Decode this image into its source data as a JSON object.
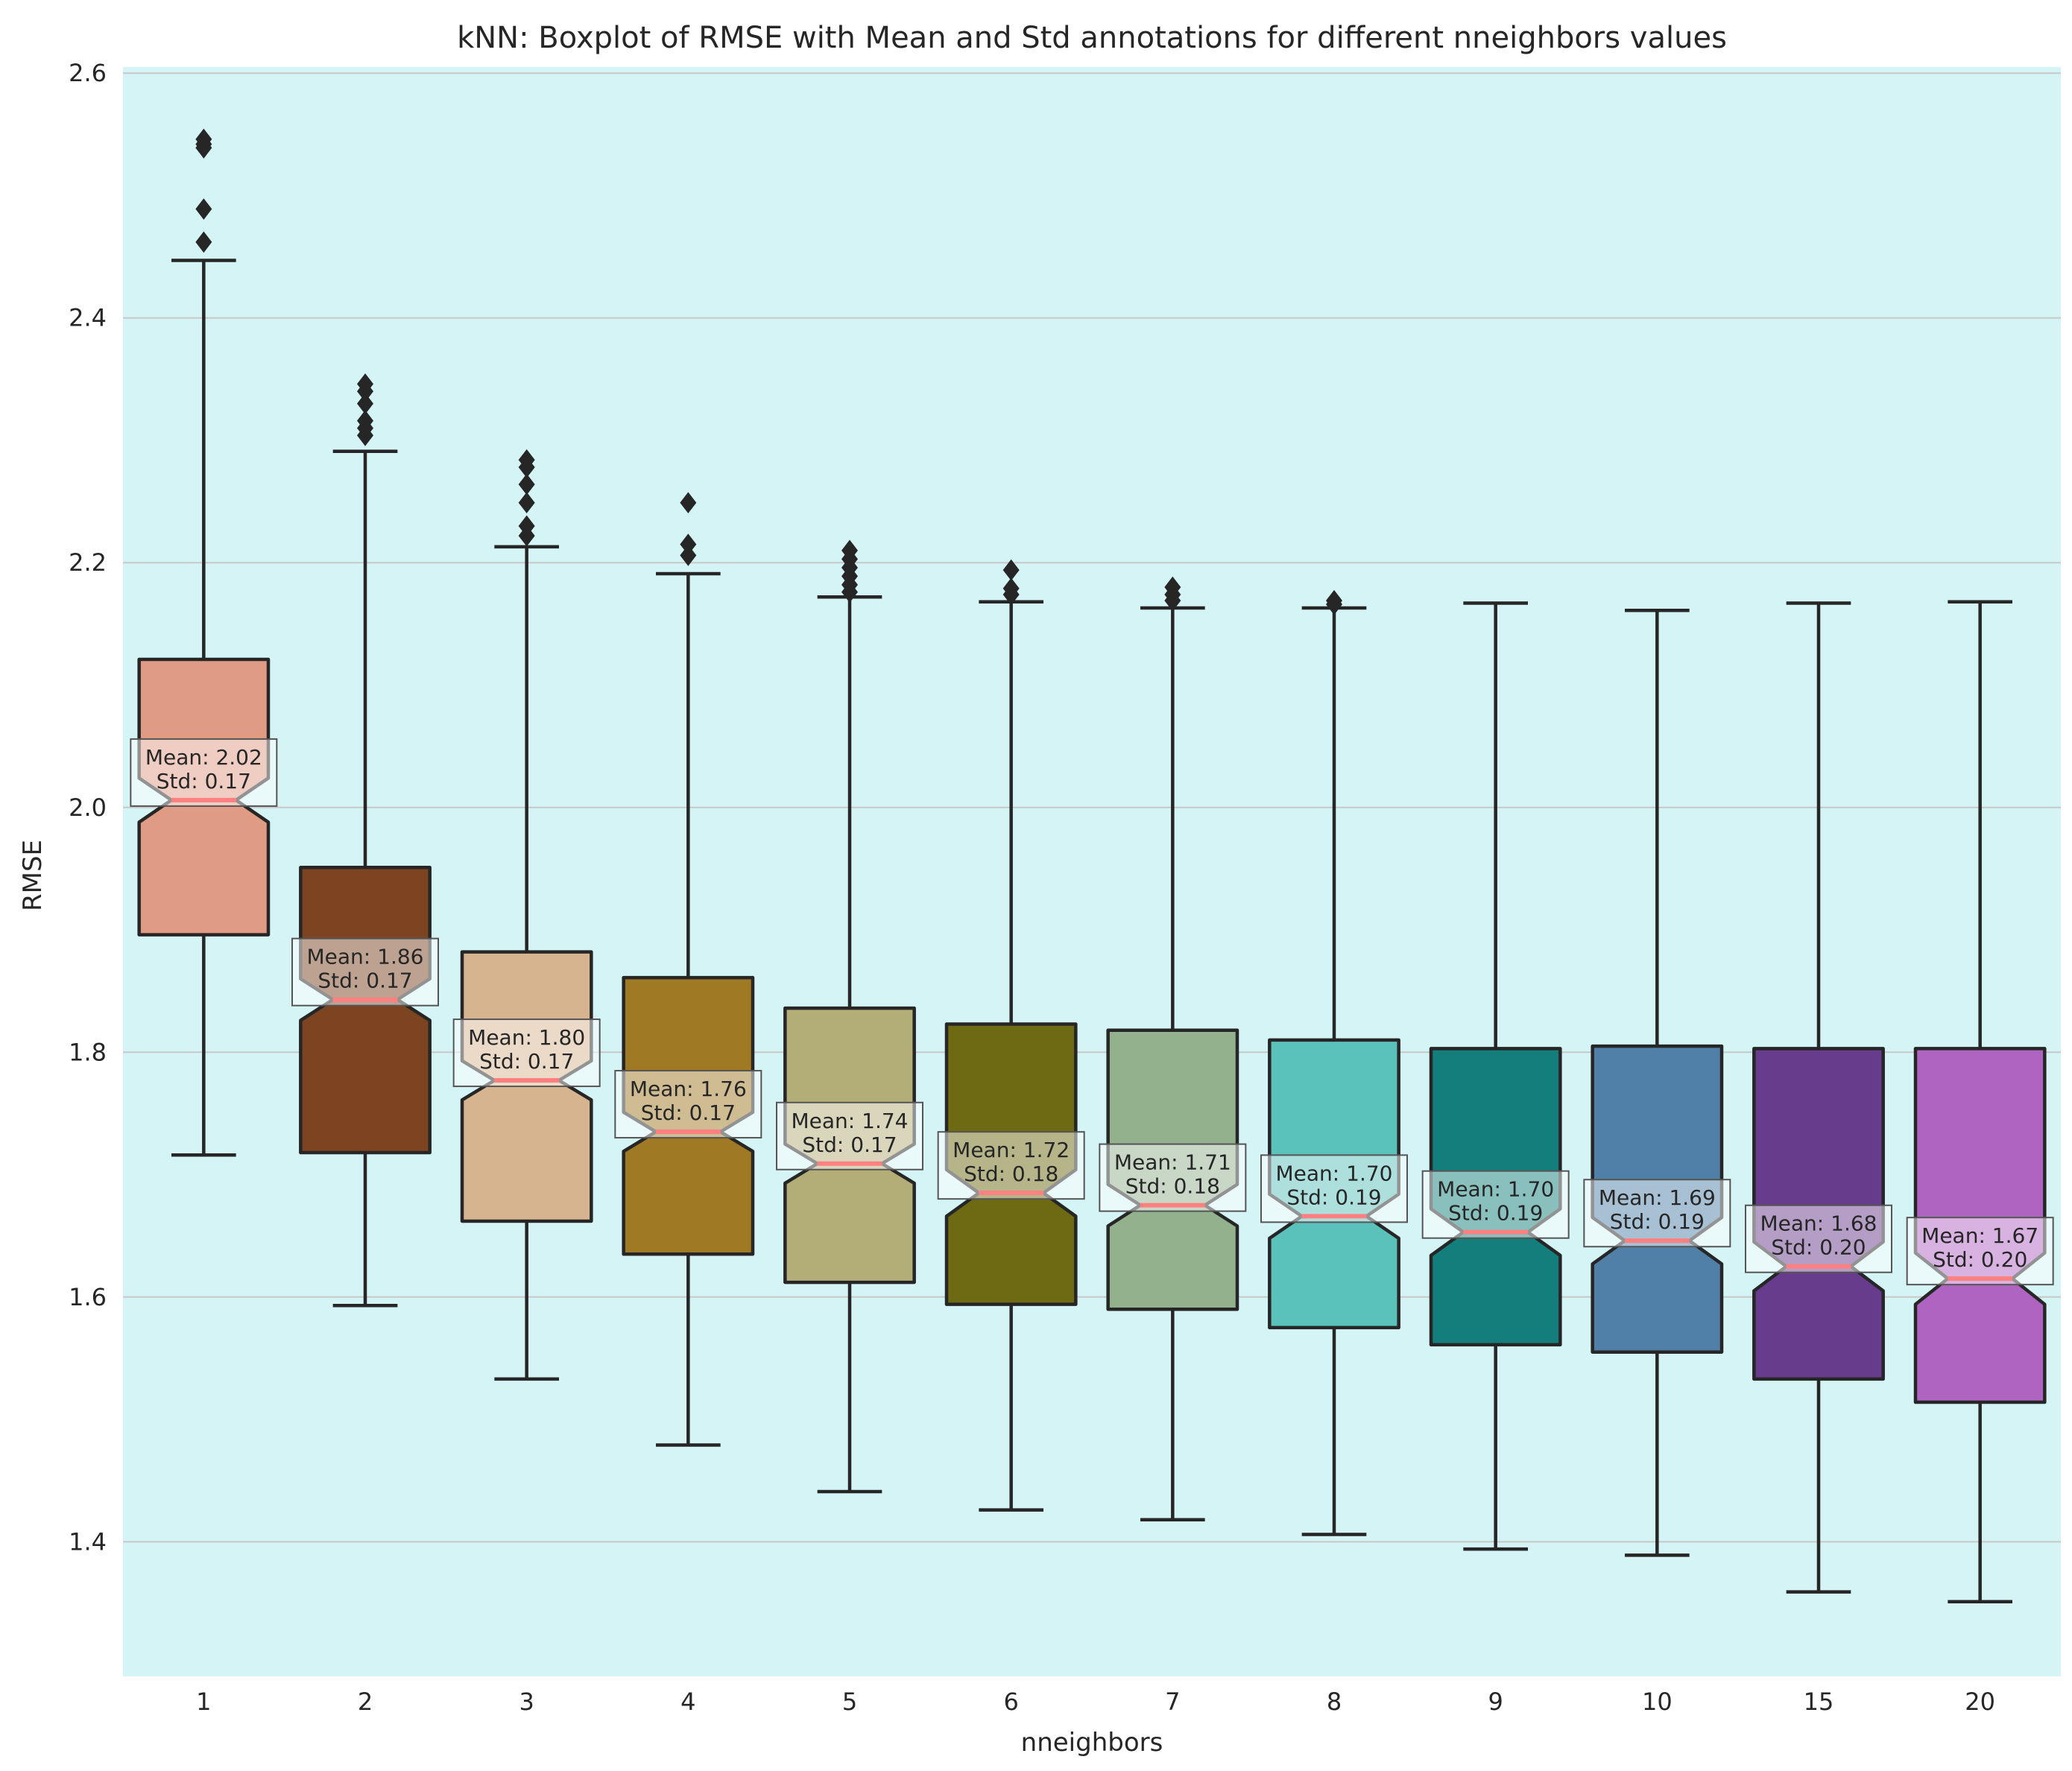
{
  "chart_data": {
    "type": "boxplot",
    "title": "kNN: Boxplot of RMSE with Mean and Std annotations for different nneighbors values",
    "xlabel": "nneighbors",
    "ylabel": "RMSE",
    "ylim": [
      1.29,
      2.605
    ],
    "yticks": [
      "1.4",
      "1.6",
      "1.8",
      "2.0",
      "2.2",
      "2.4",
      "2.6"
    ],
    "grid": true,
    "notched": true,
    "colors": {
      "background": "#d4f4f5",
      "grid": "#c8c8c8",
      "box_edge": "#262626",
      "median_line": "#ff0000"
    },
    "categories": [
      "1",
      "2",
      "3",
      "4",
      "5",
      "6",
      "7",
      "8",
      "9",
      "10",
      "15",
      "20"
    ],
    "boxes": [
      {
        "label": "1",
        "color": "#e09b84",
        "whisker_low": 1.716,
        "q1": 1.896,
        "median": 2.006,
        "q3": 2.121,
        "whisker_high": 2.447,
        "notch_low": 1.988,
        "notch_high": 2.024,
        "outliers": [
          2.462,
          2.489,
          2.539,
          2.542,
          2.546
        ],
        "mean": "Mean: 2.02",
        "std": "Std: 0.17"
      },
      {
        "label": "2",
        "color": "#7d4422",
        "whisker_low": 1.593,
        "q1": 1.718,
        "median": 1.843,
        "q3": 1.951,
        "whisker_high": 2.291,
        "notch_low": 1.826,
        "notch_high": 1.86,
        "outliers": [
          2.304,
          2.31,
          2.316,
          2.33,
          2.34,
          2.346
        ],
        "mean": "Mean: 1.86",
        "std": "Std: 0.17"
      },
      {
        "label": "3",
        "color": "#d6b48f",
        "whisker_low": 1.533,
        "q1": 1.662,
        "median": 1.777,
        "q3": 1.882,
        "whisker_high": 2.213,
        "notch_low": 1.761,
        "notch_high": 1.793,
        "outliers": [
          2.222,
          2.23,
          2.249,
          2.264,
          2.278,
          2.284
        ],
        "mean": "Mean: 1.80",
        "std": "Std: 0.17"
      },
      {
        "label": "4",
        "color": "#a07924",
        "whisker_low": 1.479,
        "q1": 1.635,
        "median": 1.735,
        "q3": 1.861,
        "whisker_high": 2.191,
        "notch_low": 1.719,
        "notch_high": 1.751,
        "outliers": [
          2.206,
          2.215,
          2.249
        ],
        "mean": "Mean: 1.76",
        "std": "Std: 0.17"
      },
      {
        "label": "5",
        "color": "#b3ad77",
        "whisker_low": 1.441,
        "q1": 1.612,
        "median": 1.709,
        "q3": 1.836,
        "whisker_high": 2.172,
        "notch_low": 1.693,
        "notch_high": 1.725,
        "outliers": [
          2.176,
          2.182,
          2.189,
          2.196,
          2.203,
          2.21
        ],
        "mean": "Mean: 1.74",
        "std": "Std: 0.17"
      },
      {
        "label": "6",
        "color": "#6d6a13",
        "whisker_low": 1.426,
        "q1": 1.594,
        "median": 1.685,
        "q3": 1.823,
        "whisker_high": 2.168,
        "notch_low": 1.666,
        "notch_high": 1.704,
        "outliers": [
          2.174,
          2.179,
          2.194
        ],
        "mean": "Mean: 1.72",
        "std": "Std: 0.18"
      },
      {
        "label": "7",
        "color": "#93b18d",
        "whisker_low": 1.418,
        "q1": 1.59,
        "median": 1.675,
        "q3": 1.818,
        "whisker_high": 2.163,
        "notch_low": 1.658,
        "notch_high": 1.692,
        "outliers": [
          2.169,
          2.174,
          2.18
        ],
        "mean": "Mean: 1.71",
        "std": "Std: 0.18"
      },
      {
        "label": "8",
        "color": "#5bc1bb",
        "whisker_low": 1.406,
        "q1": 1.575,
        "median": 1.666,
        "q3": 1.81,
        "whisker_high": 2.163,
        "notch_low": 1.648,
        "notch_high": 1.684,
        "outliers": [
          2.166,
          2.169
        ],
        "mean": "Mean: 1.70",
        "std": "Std: 0.19"
      },
      {
        "label": "9",
        "color": "#137e7b",
        "whisker_low": 1.394,
        "q1": 1.561,
        "median": 1.653,
        "q3": 1.803,
        "whisker_high": 2.167,
        "notch_low": 1.634,
        "notch_high": 1.672,
        "outliers": [],
        "mean": "Mean: 1.70",
        "std": "Std: 0.19"
      },
      {
        "label": "10",
        "color": "#5080a7",
        "whisker_low": 1.389,
        "q1": 1.555,
        "median": 1.646,
        "q3": 1.805,
        "whisker_high": 2.161,
        "notch_low": 1.627,
        "notch_high": 1.665,
        "outliers": [],
        "mean": "Mean: 1.69",
        "std": "Std: 0.19"
      },
      {
        "label": "15",
        "color": "#683c8d",
        "whisker_low": 1.359,
        "q1": 1.533,
        "median": 1.625,
        "q3": 1.803,
        "whisker_high": 2.167,
        "notch_low": 1.605,
        "notch_high": 1.645,
        "outliers": [],
        "mean": "Mean: 1.68",
        "std": "Std: 0.20"
      },
      {
        "label": "20",
        "color": "#b064c2",
        "whisker_low": 1.351,
        "q1": 1.514,
        "median": 1.615,
        "q3": 1.803,
        "whisker_high": 2.168,
        "notch_low": 1.594,
        "notch_high": 1.636,
        "outliers": [],
        "mean": "Mean: 1.67",
        "std": "Std: 0.20"
      }
    ]
  }
}
